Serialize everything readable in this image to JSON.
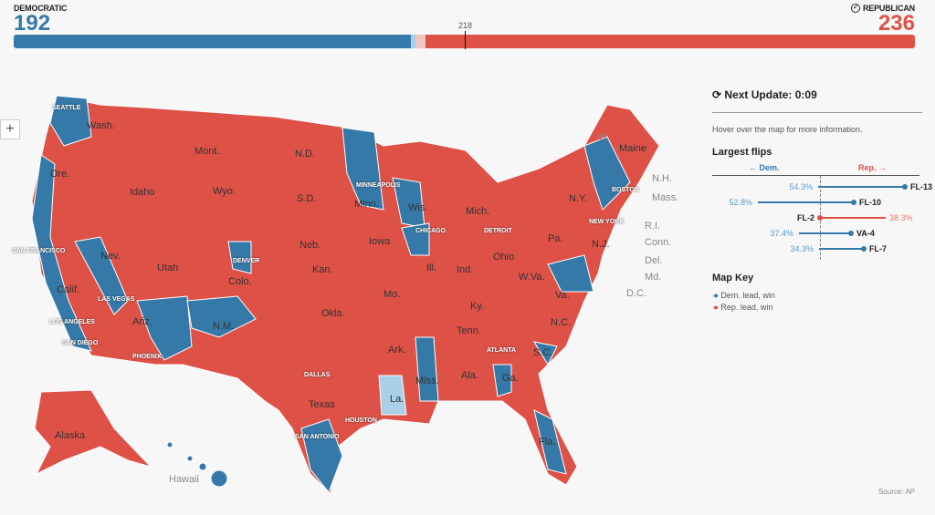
{
  "tally": {
    "dem_label": "DEMOCRATIC",
    "dem_seats": "192",
    "rep_label": "REPUBLICAN",
    "rep_seats": "236",
    "majority": "218",
    "dem_share": 0.441,
    "dem_lean_share": 0.005,
    "rep_lean_share": 0.011,
    "colors": {
      "dem": "#3579a8",
      "dem_light": "#a9d0e8",
      "rep": "#de5147",
      "rep_light": "#f0c6c3"
    }
  },
  "zoom_button": "+",
  "panel": {
    "next_update": "Next Update: 0:09",
    "hint": "Hover over the map for more information.",
    "flips_title": "Largest flips",
    "dem_axis": "← Dem.",
    "rep_axis": "Rep. →",
    "flips": [
      {
        "district": "FL-13",
        "pct": "54.3%",
        "to": "dem"
      },
      {
        "district": "FL-10",
        "pct": "52.8%",
        "to": "dem"
      },
      {
        "district": "FL-2",
        "pct": "38.3%",
        "to": "rep"
      },
      {
        "district": "VA-4",
        "pct": "37.4%",
        "to": "dem"
      },
      {
        "district": "FL-7",
        "pct": "34.3%",
        "to": "dem"
      }
    ],
    "key_title": "Map Key",
    "key": [
      {
        "label": "Dem. lead, win"
      },
      {
        "label": "Rep. lead, win"
      }
    ]
  },
  "map": {
    "states": [
      "Wash.",
      "Ore.",
      "Idaho",
      "Mont.",
      "Wyo.",
      "N.D.",
      "S.D.",
      "Neb.",
      "Minn.",
      "Iowa",
      "Wis.",
      "Mich.",
      "Nev.",
      "Utah",
      "Colo.",
      "Calif.",
      "Ariz.",
      "N.M.",
      "Kan.",
      "Okla.",
      "Texas",
      "Mo.",
      "Ill.",
      "Ind.",
      "Ohio",
      "Ky.",
      "Tenn.",
      "Ark.",
      "La.",
      "Miss.",
      "Ala.",
      "Ga.",
      "Fla.",
      "S.C.",
      "N.C.",
      "Va.",
      "W.Va.",
      "Pa.",
      "N.Y.",
      "Maine",
      "N.J.",
      "Alaska"
    ],
    "cities": [
      "SEATTLE",
      "SAN FRANCISCO",
      "LOS ANGELES",
      "SAN DIEGO",
      "LAS VEGAS",
      "PHOENIX",
      "DENVER",
      "DALLAS",
      "HOUSTON",
      "SAN ANTONIO",
      "MINNEAPOLIS",
      "CHICAGO",
      "DETROIT",
      "ATLANTA",
      "NEW YORK",
      "BOSTON"
    ],
    "external": [
      "Vt.",
      "N.H.",
      "Mass.",
      "R.I.",
      "Conn.",
      "Del.",
      "Md.",
      "D.C.",
      "Hawaii"
    ],
    "source": "Source: AP"
  }
}
